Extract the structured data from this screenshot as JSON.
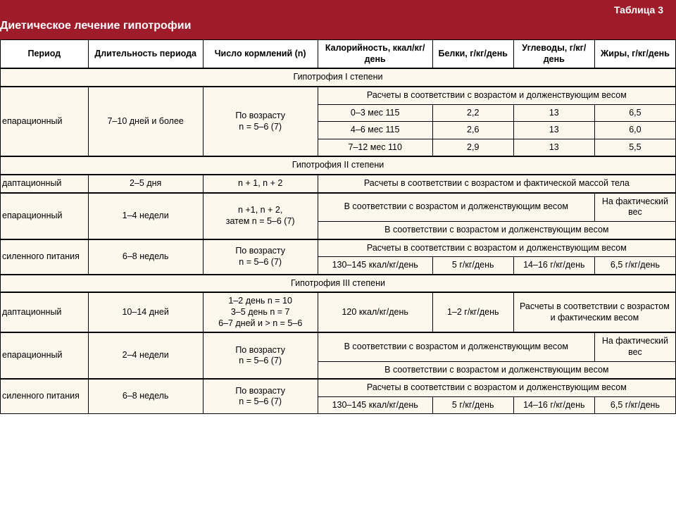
{
  "header": {
    "table_number": "Таблица 3",
    "title": "Диетическое лечение гипотрофии"
  },
  "columns": {
    "c1": "Период",
    "c2": "Длительность периода",
    "c3": "Число кормлений (n)",
    "c4": "Калорийность, ккал/кг/день",
    "c5": "Белки, г/кг/день",
    "c6": "Углеводы, г/кг/день",
    "c7": "Жиры, г/кг/день"
  },
  "sections": {
    "s1": "Гипотрофия I степени",
    "s2": "Гипотрофия II степени",
    "s3": "Гипотрофия III степени"
  },
  "s1r1": {
    "period": "епарационный",
    "duration": "7–10 дней и более",
    "feedings": "По возрасту\nn = 5–6 (7)",
    "span_note": "Расчеты в соответствии с возрастом и долженствующим весом"
  },
  "s1r2": {
    "kcal": "0–3 мес 115",
    "prot": "2,2",
    "carb": "13",
    "fat": "6,5"
  },
  "s1r3": {
    "kcal": "4–6 мес 115",
    "prot": "2,6",
    "carb": "13",
    "fat": "6,0"
  },
  "s1r4": {
    "kcal": "7–12 мес 110",
    "prot": "2,9",
    "carb": "13",
    "fat": "5,5"
  },
  "s2r1": {
    "period": "даптационный",
    "duration": "2–5 дня",
    "feedings": "n + 1, n + 2",
    "note": "Расчеты в соответствии с возрастом и фактической массой тела"
  },
  "s2r2": {
    "period": "епарационный",
    "duration": "1–4 недели",
    "feedings": "n +1, n + 2,\nзатем n = 5–6 (7)",
    "note3": "В соответствии с возрастом и долженствующим весом",
    "fat": "На фактический вес"
  },
  "s2r3": {
    "note": "В соответствии с возрастом и долженствующим весом"
  },
  "s2r4": {
    "period": "силенного питания",
    "duration": "6–8 недель",
    "feedings": "По возрасту\nn = 5–6 (7)",
    "note": "Расчеты в соответствии с возрастом и долженствующим весом"
  },
  "s2r5": {
    "kcal": "130–145 ккал/кг/день",
    "prot": "5 г/кг/день",
    "carb": "14–16 г/кг/день",
    "fat": "6,5 г/кг/день"
  },
  "s3r1": {
    "period": "даптационный",
    "duration": "10–14 дней",
    "feedings": "1–2 день n = 10\n3–5 день n = 7\n6–7 дней и > n = 5–6",
    "kcal": "120 ккал/кг/день",
    "prot": "1–2 г/кг/день",
    "note2": "Расчеты в соответствии с возрастом и фактическим весом"
  },
  "s3r2": {
    "period": "епарационный",
    "duration": "2–4 недели",
    "feedings": "По возрасту\nn = 5–6 (7)",
    "note3": "В соответствии с возрастом и долженствующим весом",
    "fat": "На фактический вес"
  },
  "s3r3": {
    "note": "В соответствии с возрастом и долженствующим весом"
  },
  "s3r4": {
    "period": "силенного питания",
    "duration": "6–8 недель",
    "feedings": "По возрасту\nn = 5–6 (7)",
    "note": "Расчеты в соответствии с возрастом и долженствующим весом"
  },
  "s3r5": {
    "kcal": "130–145 ккал/кг/день",
    "prot": "5 г/кг/день",
    "carb": "14–16 г/кг/день",
    "fat": "6,5 г/кг/день"
  },
  "colors": {
    "header_bg": "#9e1c2a",
    "body_bg": "#fdf8ee",
    "border": "#000000"
  }
}
